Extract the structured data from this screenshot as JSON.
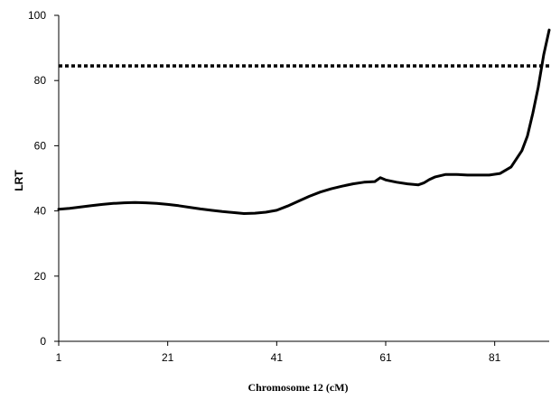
{
  "chart_data": {
    "type": "line",
    "title": "",
    "xlabel": "Chromosome 12 (cM)",
    "ylabel": "LRT",
    "xlim": [
      1,
      91
    ],
    "ylim": [
      0,
      100
    ],
    "x_ticks": [
      1,
      21,
      41,
      61,
      81
    ],
    "y_ticks": [
      0,
      20,
      40,
      60,
      80,
      100
    ],
    "grid": false,
    "legend": "none",
    "line_color": "#000000",
    "threshold": {
      "value": 84.5,
      "style": "dotted"
    },
    "series": [
      {
        "x": [
          1,
          3,
          5,
          7,
          9,
          11,
          13,
          15,
          17,
          19,
          21,
          23,
          25,
          27,
          29,
          31,
          33,
          35,
          37,
          39,
          41,
          43,
          45,
          47,
          49,
          51,
          53,
          55,
          57,
          59,
          60,
          61,
          63,
          65,
          67,
          68,
          69,
          70,
          72,
          74,
          76,
          78,
          80,
          82,
          84,
          86,
          87,
          88,
          89,
          90,
          91
        ],
        "y": [
          40.5,
          40.8,
          41.2,
          41.6,
          42.0,
          42.3,
          42.5,
          42.6,
          42.5,
          42.3,
          42.0,
          41.6,
          41.1,
          40.6,
          40.2,
          39.8,
          39.5,
          39.2,
          39.3,
          39.6,
          40.2,
          41.5,
          43.0,
          44.5,
          45.8,
          46.8,
          47.6,
          48.3,
          48.8,
          49.0,
          50.2,
          49.5,
          48.8,
          48.3,
          48.0,
          48.6,
          49.6,
          50.4,
          51.2,
          51.2,
          51.0,
          51.0,
          51.0,
          51.5,
          53.5,
          58.5,
          63.0,
          70.0,
          78.0,
          88.0,
          95.5
        ]
      }
    ]
  }
}
